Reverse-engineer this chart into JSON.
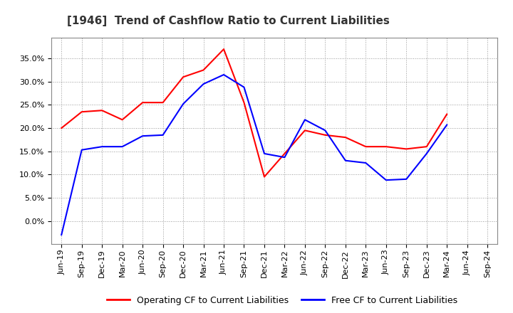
{
  "title": "[1946]  Trend of Cashflow Ratio to Current Liabilities",
  "x_labels": [
    "Jun-19",
    "Sep-19",
    "Dec-19",
    "Mar-20",
    "Jun-20",
    "Sep-20",
    "Dec-20",
    "Mar-21",
    "Jun-21",
    "Sep-21",
    "Dec-21",
    "Mar-22",
    "Jun-22",
    "Sep-22",
    "Dec-22",
    "Mar-23",
    "Jun-23",
    "Sep-23",
    "Dec-23",
    "Mar-24",
    "Jun-24",
    "Sep-24"
  ],
  "operating_cf": [
    0.2,
    0.235,
    0.238,
    0.218,
    0.255,
    0.255,
    0.31,
    0.325,
    0.37,
    0.255,
    0.095,
    0.145,
    0.195,
    0.185,
    0.18,
    0.16,
    0.16,
    0.155,
    0.16,
    0.23,
    null,
    null
  ],
  "free_cf": [
    -0.03,
    0.153,
    0.16,
    0.16,
    0.183,
    0.185,
    0.252,
    0.295,
    0.315,
    0.288,
    0.145,
    0.137,
    0.218,
    0.195,
    0.13,
    0.125,
    0.088,
    0.09,
    0.145,
    0.207,
    null,
    null
  ],
  "operating_color": "#FF0000",
  "free_color": "#0000FF",
  "ylim": [
    -0.05,
    0.395
  ],
  "yticks": [
    0.0,
    0.05,
    0.1,
    0.15,
    0.2,
    0.25,
    0.3,
    0.35
  ],
  "background_color": "#FFFFFF",
  "plot_bg_color": "#FFFFFF",
  "grid_color": "#999999",
  "legend_operating": "Operating CF to Current Liabilities",
  "legend_free": "Free CF to Current Liabilities",
  "title_fontsize": 11,
  "tick_fontsize": 8,
  "legend_fontsize": 9
}
